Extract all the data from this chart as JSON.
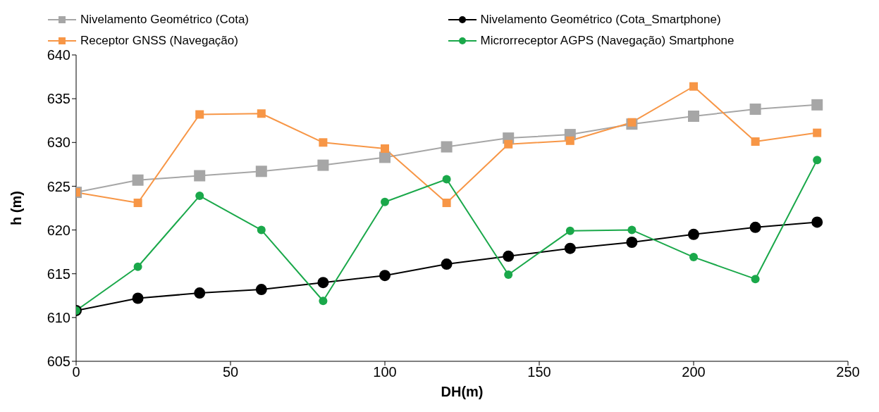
{
  "chart_data": {
    "type": "line",
    "xlabel": "DH(m)",
    "ylabel": "h (m)",
    "x": [
      0,
      20,
      40,
      60,
      80,
      100,
      120,
      140,
      160,
      180,
      200,
      220,
      240
    ],
    "series": [
      {
        "name": "Nivelamento Geométrico (Cota)",
        "color": "#a6a6a6",
        "marker": "square",
        "values": [
          624.3,
          625.7,
          626.2,
          626.7,
          627.4,
          628.3,
          629.5,
          630.5,
          630.9,
          632.1,
          633.0,
          633.8,
          634.3
        ]
      },
      {
        "name": "Nivelamento Geométrico (Cota_Smartphone)",
        "color": "#000000",
        "marker": "circle",
        "values": [
          610.8,
          612.2,
          612.8,
          613.2,
          614.0,
          614.8,
          616.1,
          617.0,
          617.9,
          618.6,
          619.5,
          620.3,
          620.9
        ]
      },
      {
        "name": "Receptor GNSS (Navegação)",
        "color": "#f79646",
        "marker": "square",
        "values": [
          624.3,
          623.1,
          633.2,
          633.3,
          630.0,
          629.3,
          623.1,
          629.8,
          630.2,
          632.3,
          636.4,
          630.1,
          631.1
        ]
      },
      {
        "name": "Microrreceptor AGPS (Navegação) Smartphone",
        "color": "#1aa84a",
        "marker": "circle",
        "values": [
          610.8,
          615.8,
          623.9,
          620.0,
          611.9,
          623.2,
          625.8,
          614.9,
          619.9,
          620.0,
          616.9,
          614.4,
          628.0
        ]
      }
    ],
    "xlim": [
      0,
      250
    ],
    "xticks": [
      0,
      50,
      100,
      150,
      200,
      250
    ],
    "ylim": [
      605,
      640
    ],
    "yticks": [
      605,
      610,
      615,
      620,
      625,
      630,
      635,
      640
    ],
    "grid": false,
    "legend": "top",
    "line_style": "solid"
  }
}
